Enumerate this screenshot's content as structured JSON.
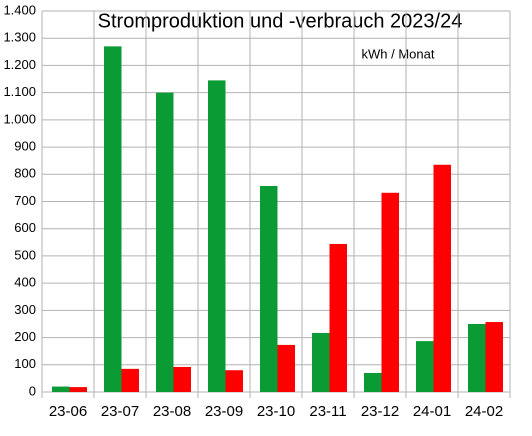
{
  "chart_data": {
    "type": "bar",
    "title": "Stromproduktion und -verbrauch 2023/24",
    "subtitle": "kWh / Monat",
    "categories": [
      "23-06",
      "23-07",
      "23-08",
      "23-09",
      "23-10",
      "23-11",
      "23-12",
      "24-01",
      "24-02"
    ],
    "series": [
      {
        "color": "#0a9b35",
        "values": [
          20,
          1270,
          1100,
          1145,
          757,
          217,
          70,
          187,
          250
        ]
      },
      {
        "color": "#ff0000",
        "values": [
          18,
          85,
          92,
          80,
          173,
          544,
          732,
          835,
          257
        ]
      }
    ],
    "ylim": [
      0,
      1400
    ],
    "yticks": [
      0,
      100,
      200,
      300,
      400,
      500,
      600,
      700,
      800,
      900,
      {
        "value": 1000,
        "label": "1.000"
      },
      {
        "value": 1100,
        "label": "1.100"
      },
      {
        "value": 1200,
        "label": "1.200"
      },
      {
        "value": 1300,
        "label": "1.300"
      },
      {
        "value": 1400,
        "label": "1.400"
      }
    ],
    "grid": true
  }
}
